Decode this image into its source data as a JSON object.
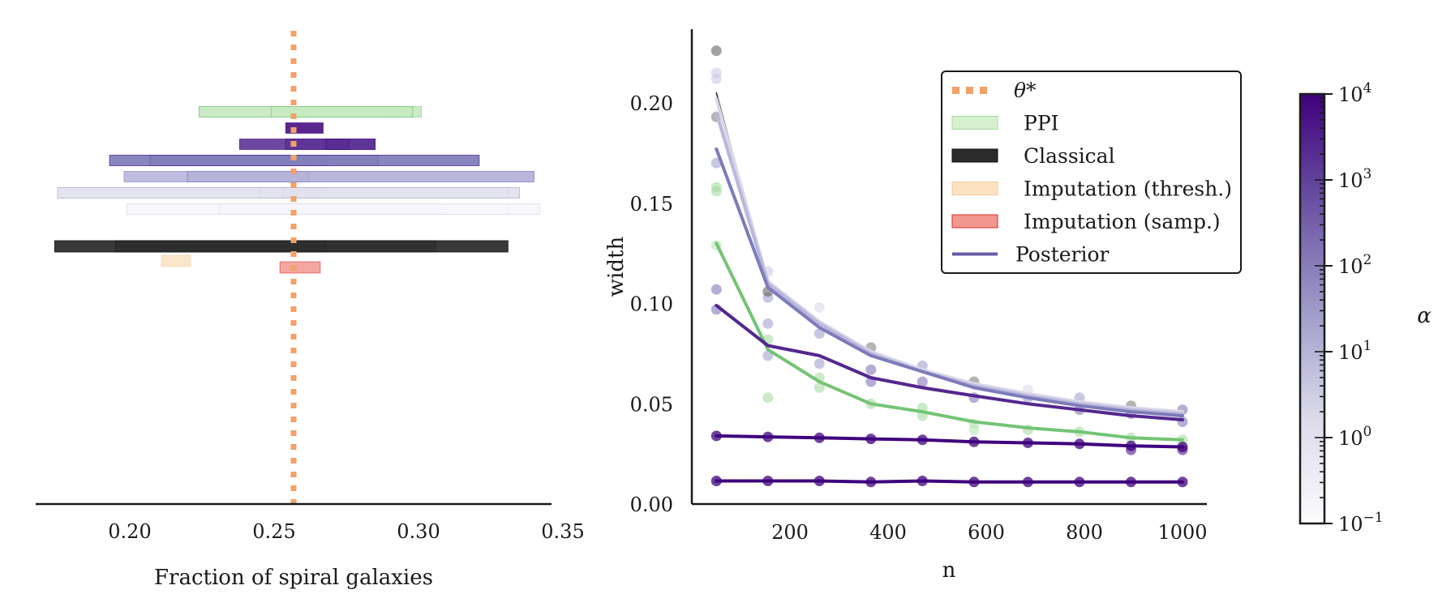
{
  "chart_data": [
    {
      "type": "interval",
      "title": "",
      "xlabel": "Fraction of spiral galaxies",
      "xlim": [
        0.165,
        0.35
      ],
      "xticks": [
        0.2,
        0.25,
        0.3,
        0.35
      ],
      "xtick_labels": [
        "0.20",
        "0.25",
        "0.30",
        "0.35"
      ],
      "theta_star": 0.259,
      "rows": [
        {
          "method": "PPI",
          "color": "#c7e9c0",
          "edge": "#74c476",
          "level": 0,
          "intervals": [
            [
              0.224,
              0.301
            ],
            [
              0.224,
              0.298
            ],
            [
              0.249,
              0.298
            ]
          ]
        },
        {
          "method": "Posterior",
          "alpha": 10000,
          "color": "#3f007d",
          "edge": "#3f007d",
          "level": 1,
          "intervals": [
            [
              0.254,
              0.267
            ]
          ]
        },
        {
          "method": "Posterior",
          "alpha": 1000,
          "color": "#54278f",
          "edge": "#3f007d",
          "level": 2,
          "intervals": [
            [
              0.238,
              0.285
            ],
            [
              0.254,
              0.276
            ],
            [
              0.268,
              0.285
            ]
          ]
        },
        {
          "method": "Posterior",
          "alpha": 100,
          "color": "#807dba",
          "edge": "#54278f",
          "level": 3,
          "intervals": [
            [
              0.193,
              0.321
            ],
            [
              0.207,
              0.268
            ],
            [
              0.207,
              0.286
            ],
            [
              0.193,
              0.321
            ]
          ]
        },
        {
          "method": "Posterior",
          "alpha": 10,
          "color": "#b3b0d8",
          "edge": "#807dba",
          "level": 4,
          "intervals": [
            [
              0.198,
              0.34
            ],
            [
              0.22,
              0.262
            ],
            [
              0.22,
              0.34
            ]
          ]
        },
        {
          "method": "Posterior",
          "alpha": 1,
          "color": "#e2e1ef",
          "edge": "#b3b0d8",
          "level": 5,
          "intervals": [
            [
              0.175,
              0.335
            ],
            [
              0.245,
              0.266
            ],
            [
              0.253,
              0.331
            ],
            [
              0.175,
              0.335
            ]
          ]
        },
        {
          "method": "Posterior",
          "alpha": 0.1,
          "color": "#f7f6fb",
          "edge": "#dadaeb",
          "level": 6,
          "intervals": [
            [
              0.199,
              0.342
            ],
            [
              0.231,
              0.308
            ],
            [
              0.199,
              0.331
            ],
            [
              0.231,
              0.342
            ]
          ]
        },
        {
          "method": "Classical",
          "color": "#2b2b2b",
          "edge": "#111111",
          "level": 8.3,
          "intervals": [
            [
              0.174,
              0.331
            ],
            [
              0.195,
              0.306
            ],
            [
              0.195,
              0.268
            ],
            [
              0.174,
              0.331
            ]
          ]
        },
        {
          "method": "Imputation (thresh.)",
          "color": "#fde3c2",
          "edge": "#f3c998",
          "level": 9.2,
          "intervals": [
            [
              0.211,
              0.221
            ]
          ]
        },
        {
          "method": "Imputation (samp.)",
          "color": "#f09890",
          "edge": "#d7302b",
          "level": 9.6,
          "intervals": [
            [
              0.252,
              0.266
            ]
          ]
        }
      ]
    },
    {
      "type": "line",
      "title": "",
      "xlabel": "n",
      "ylabel": "width",
      "xlim": [
        0,
        1050
      ],
      "ylim": [
        0,
        0.238
      ],
      "xticks": [
        200,
        400,
        600,
        800,
        1000
      ],
      "xtick_labels": [
        "200",
        "400",
        "600",
        "800",
        "1000"
      ],
      "yticks": [
        0.0,
        0.05,
        0.1,
        0.15,
        0.2
      ],
      "ytick_labels": [
        "0.00",
        "0.05",
        "0.10",
        "0.15",
        "0.20"
      ],
      "x": [
        50,
        155,
        260,
        365,
        470,
        575,
        685,
        790,
        895,
        1000
      ],
      "series": [
        {
          "name": "Classical",
          "color": "#1a1a1a",
          "width": 1.5,
          "values": [
            0.205,
            0.11,
            0.09,
            0.076,
            0.067,
            0.06,
            0.055,
            0.051,
            0.048,
            0.046
          ]
        },
        {
          "name": "Posterior α=0.1",
          "color": "#d8d7ea",
          "width": 4,
          "values": [
            0.202,
            0.111,
            0.091,
            0.076,
            0.067,
            0.06,
            0.055,
            0.051,
            0.048,
            0.046
          ]
        },
        {
          "name": "Posterior α=1",
          "color": "#b9b7db",
          "width": 4,
          "values": [
            0.195,
            0.11,
            0.09,
            0.075,
            0.066,
            0.059,
            0.054,
            0.05,
            0.047,
            0.045
          ]
        },
        {
          "name": "Posterior α=10",
          "color": "#7d7bba",
          "width": 4,
          "values": [
            0.177,
            0.108,
            0.088,
            0.074,
            0.066,
            0.058,
            0.053,
            0.049,
            0.046,
            0.044
          ]
        },
        {
          "name": "PPI",
          "color": "#74c476",
          "width": 4,
          "values": [
            0.13,
            0.077,
            0.061,
            0.05,
            0.046,
            0.041,
            0.038,
            0.036,
            0.033,
            0.032
          ]
        },
        {
          "name": "Posterior α=100",
          "color": "#54278f",
          "width": 4,
          "values": [
            0.099,
            0.079,
            0.074,
            0.063,
            0.058,
            0.054,
            0.05,
            0.047,
            0.044,
            0.042
          ]
        },
        {
          "name": "Posterior α=1000",
          "color": "#3f007d",
          "width": 4,
          "values": [
            0.034,
            0.0335,
            0.033,
            0.0325,
            0.032,
            0.031,
            0.0305,
            0.03,
            0.029,
            0.0285
          ]
        },
        {
          "name": "Posterior α=10000",
          "color": "#3f007d",
          "width": 4,
          "values": [
            0.0115,
            0.0115,
            0.0115,
            0.011,
            0.0115,
            0.011,
            0.011,
            0.011,
            0.011,
            0.011
          ]
        }
      ],
      "scatter": [
        {
          "x": 50,
          "y": 0.226,
          "color": "#555555"
        },
        {
          "x": 50,
          "y": 0.193,
          "color": "#777777"
        },
        {
          "x": 50,
          "y": 0.215,
          "color": "#c8c7e2"
        },
        {
          "x": 50,
          "y": 0.212,
          "color": "#c8c7e2"
        },
        {
          "x": 50,
          "y": 0.17,
          "color": "#9b99cc"
        },
        {
          "x": 50,
          "y": 0.158,
          "color": "#9ed89a"
        },
        {
          "x": 50,
          "y": 0.156,
          "color": "#9ed89a"
        },
        {
          "x": 50,
          "y": 0.107,
          "color": "#7b68b5"
        },
        {
          "x": 50,
          "y": 0.097,
          "color": "#7b68b5"
        },
        {
          "x": 50,
          "y": 0.129,
          "color": "#b7e3b1"
        },
        {
          "x": 155,
          "y": 0.116,
          "color": "#c8c7e2"
        },
        {
          "x": 155,
          "y": 0.103,
          "color": "#9b99cc"
        },
        {
          "x": 155,
          "y": 0.09,
          "color": "#9b99cc"
        },
        {
          "x": 155,
          "y": 0.074,
          "color": "#9b99cc"
        },
        {
          "x": 155,
          "y": 0.053,
          "color": "#9ed89a"
        },
        {
          "x": 155,
          "y": 0.082,
          "color": "#9ed89a"
        },
        {
          "x": 155,
          "y": 0.106,
          "color": "#555555"
        },
        {
          "x": 260,
          "y": 0.098,
          "color": "#d8d7ea"
        },
        {
          "x": 260,
          "y": 0.085,
          "color": "#9b99cc"
        },
        {
          "x": 260,
          "y": 0.07,
          "color": "#9b99cc"
        },
        {
          "x": 260,
          "y": 0.058,
          "color": "#9ed89a"
        },
        {
          "x": 260,
          "y": 0.063,
          "color": "#9ed89a"
        },
        {
          "x": 365,
          "y": 0.078,
          "color": "#777777"
        },
        {
          "x": 365,
          "y": 0.067,
          "color": "#7b68b5"
        },
        {
          "x": 365,
          "y": 0.061,
          "color": "#7b68b5"
        },
        {
          "x": 365,
          "y": 0.05,
          "color": "#9ed89a"
        },
        {
          "x": 470,
          "y": 0.069,
          "color": "#9b99cc"
        },
        {
          "x": 470,
          "y": 0.061,
          "color": "#7b68b5"
        },
        {
          "x": 470,
          "y": 0.048,
          "color": "#9ed89a"
        },
        {
          "x": 470,
          "y": 0.044,
          "color": "#9ed89a"
        },
        {
          "x": 575,
          "y": 0.061,
          "color": "#777777"
        },
        {
          "x": 575,
          "y": 0.053,
          "color": "#7b68b5"
        },
        {
          "x": 575,
          "y": 0.04,
          "color": "#b7e3b1"
        },
        {
          "x": 575,
          "y": 0.037,
          "color": "#b7e3b1"
        },
        {
          "x": 685,
          "y": 0.057,
          "color": "#d8d7ea"
        },
        {
          "x": 685,
          "y": 0.053,
          "color": "#9b99cc"
        },
        {
          "x": 685,
          "y": 0.037,
          "color": "#9ed89a"
        },
        {
          "x": 790,
          "y": 0.053,
          "color": "#9b99cc"
        },
        {
          "x": 790,
          "y": 0.047,
          "color": "#7b68b5"
        },
        {
          "x": 790,
          "y": 0.036,
          "color": "#9ed89a"
        },
        {
          "x": 895,
          "y": 0.049,
          "color": "#777777"
        },
        {
          "x": 895,
          "y": 0.045,
          "color": "#7b68b5"
        },
        {
          "x": 895,
          "y": 0.033,
          "color": "#9ed89a"
        },
        {
          "x": 895,
          "y": 0.027,
          "color": "#3f007d"
        },
        {
          "x": 1000,
          "y": 0.047,
          "color": "#7b68b5"
        },
        {
          "x": 1000,
          "y": 0.041,
          "color": "#7b68b5"
        },
        {
          "x": 1000,
          "y": 0.032,
          "color": "#9ed89a"
        },
        {
          "x": 1000,
          "y": 0.027,
          "color": "#3f007d"
        }
      ],
      "legend": {
        "position": "upper-right",
        "entries": [
          {
            "label": "θ*",
            "kind": "dots",
            "color": "#f0a26a"
          },
          {
            "label": "PPI",
            "kind": "patch",
            "color": "#d6f0d0",
            "edge": "#a6dba0"
          },
          {
            "label": "Classical",
            "kind": "patch",
            "color": "#2b2b2b",
            "edge": "#111111"
          },
          {
            "label": "Imputation (thresh.)",
            "kind": "patch",
            "color": "#fde3c2",
            "edge": "#f3c998"
          },
          {
            "label": "Imputation (samp.)",
            "kind": "patch",
            "color": "#f09890",
            "edge": "#d7302b"
          },
          {
            "label": "Posterior",
            "kind": "line",
            "color": "#6a5aa8"
          }
        ]
      }
    },
    {
      "type": "colorbar",
      "label": "α",
      "scale": "log",
      "range": [
        0.1,
        10000
      ],
      "colors": [
        "#fcfbfd",
        "#dadaeb",
        "#9e9ac8",
        "#6a51a3",
        "#3f007d"
      ],
      "ticks": [
        {
          "base": "10",
          "exp": "4"
        },
        {
          "base": "10",
          "exp": "3"
        },
        {
          "base": "10",
          "exp": "2"
        },
        {
          "base": "10",
          "exp": "1"
        },
        {
          "base": "10",
          "exp": "0"
        },
        {
          "base": "10",
          "exp": "−1"
        }
      ]
    }
  ]
}
